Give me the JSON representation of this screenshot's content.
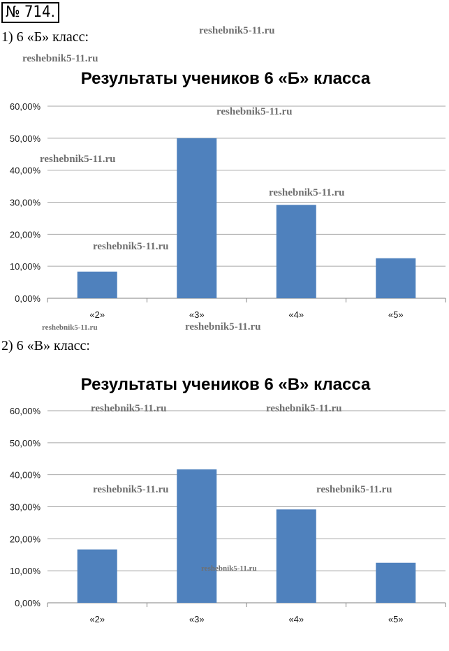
{
  "task_number": "№ 714.",
  "parts": [
    {
      "label": "1) 6 «Б» класс:"
    },
    {
      "label": "2) 6 «В» класс:"
    }
  ],
  "watermark": "reshebnik5-11.ru",
  "colors": {
    "bar": "#4f81bd",
    "grid": "#a6a6a6",
    "axis": "#808080"
  },
  "chart_data": [
    {
      "type": "bar",
      "title": "Результаты учеников 6 «Б» класса",
      "categories": [
        "«2»",
        "«3»",
        "«4»",
        "«5»"
      ],
      "values": [
        8.33,
        50.0,
        29.17,
        12.5
      ],
      "ylim": [
        0,
        60
      ],
      "yticks": [
        "0,00%",
        "10,00%",
        "20,00%",
        "30,00%",
        "40,00%",
        "50,00%",
        "60,00%"
      ],
      "grid": true,
      "legend": "none"
    },
    {
      "type": "bar",
      "title": "Результаты учеников 6 «В» класса",
      "categories": [
        "«2»",
        "«3»",
        "«4»",
        "«5»"
      ],
      "values": [
        16.67,
        41.67,
        29.17,
        12.5
      ],
      "ylim": [
        0,
        60
      ],
      "yticks": [
        "0,00%",
        "10,00%",
        "20,00%",
        "30,00%",
        "40,00%",
        "50,00%",
        "60,00%"
      ],
      "grid": true,
      "legend": "none"
    }
  ]
}
